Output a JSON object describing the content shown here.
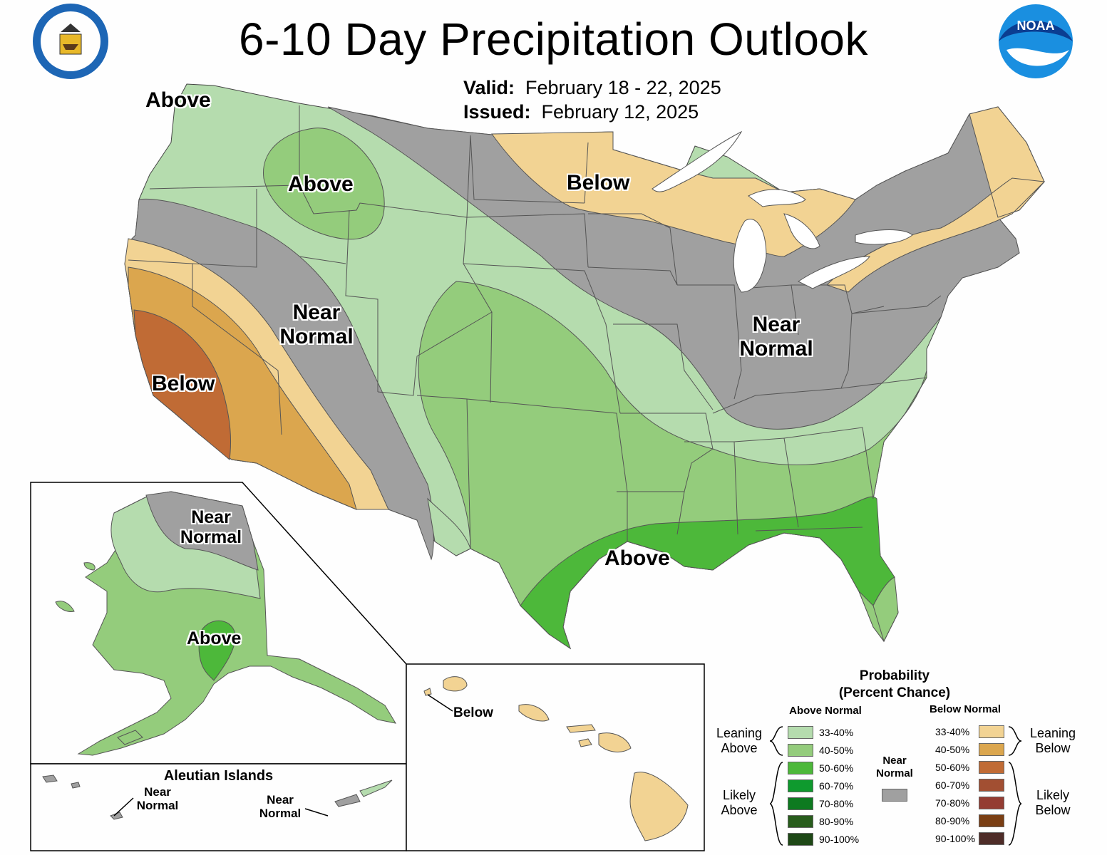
{
  "header": {
    "title": "6-10 Day Precipitation Outlook",
    "valid_label": "Valid:",
    "valid_value": "February 18 - 22, 2025",
    "issued_label": "Issued:",
    "issued_value": "February 12, 2025"
  },
  "logos": {
    "left": "department-of-commerce-seal",
    "right": "noaa-logo",
    "noaa_text": "NOAA"
  },
  "regions": {
    "northwest": "Above",
    "northern_rockies": "Above",
    "upper_midwest": "Below",
    "great_basin_line1": "Near",
    "great_basin_line2": "Normal",
    "california": "Below",
    "ohio_valley_line1": "Near",
    "ohio_valley_line2": "Normal",
    "gulf_coast": "Above",
    "alaska_north_line1": "Near",
    "alaska_north_line2": "Normal",
    "alaska_south": "Above",
    "hawaii": "Below"
  },
  "aleutians": {
    "title": "Aleutian Islands",
    "west_line1": "Near",
    "west_line2": "Normal",
    "east_line1": "Near",
    "east_line2": "Normal"
  },
  "legend": {
    "title_line1": "Probability",
    "title_line2": "(Percent Chance)",
    "above_header": "Above Normal",
    "below_header": "Below Normal",
    "near_line1": "Near",
    "near_line2": "Normal",
    "leaning_above_1": "Leaning",
    "leaning_above_2": "Above",
    "likely_above_1": "Likely",
    "likely_above_2": "Above",
    "leaning_below_1": "Leaning",
    "leaning_below_2": "Below",
    "likely_below_1": "Likely",
    "likely_below_2": "Below",
    "above": [
      {
        "range": "33-40%",
        "color": "#b5dcae"
      },
      {
        "range": "40-50%",
        "color": "#94cc7c"
      },
      {
        "range": "50-60%",
        "color": "#4db83a"
      },
      {
        "range": "60-70%",
        "color": "#0f9a2e"
      },
      {
        "range": "70-80%",
        "color": "#0d7a20"
      },
      {
        "range": "80-90%",
        "color": "#285c1c"
      },
      {
        "range": "90-100%",
        "color": "#1e4816"
      }
    ],
    "below": [
      {
        "range": "33-40%",
        "color": "#f2d393"
      },
      {
        "range": "40-50%",
        "color": "#dba64e"
      },
      {
        "range": "50-60%",
        "color": "#c06b35"
      },
      {
        "range": "60-70%",
        "color": "#a24f32"
      },
      {
        "range": "70-80%",
        "color": "#943c32"
      },
      {
        "range": "80-90%",
        "color": "#7a3e13"
      },
      {
        "range": "90-100%",
        "color": "#4e2c28"
      }
    ],
    "near_color": "#a0a0a0"
  }
}
